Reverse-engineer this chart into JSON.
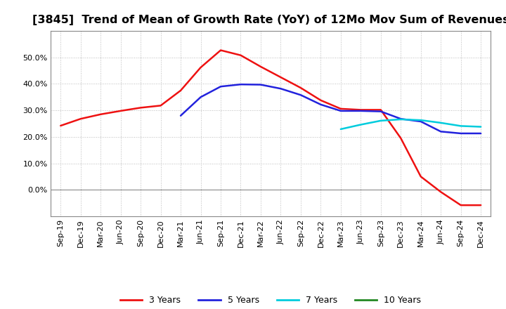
{
  "title": "[3845]  Trend of Mean of Growth Rate (YoY) of 12Mo Mov Sum of Revenues",
  "x_labels": [
    "Sep-19",
    "Dec-19",
    "Mar-20",
    "Jun-20",
    "Sep-20",
    "Dec-20",
    "Mar-21",
    "Jun-21",
    "Sep-21",
    "Dec-21",
    "Mar-22",
    "Jun-22",
    "Sep-22",
    "Dec-22",
    "Mar-23",
    "Jun-23",
    "Sep-23",
    "Dec-23",
    "Mar-24",
    "Jun-24",
    "Sep-24",
    "Dec-24"
  ],
  "ylim": [
    -0.1,
    0.6
  ],
  "yticks": [
    0.0,
    0.1,
    0.2,
    0.3,
    0.4,
    0.5
  ],
  "series": {
    "3 Years": {
      "color": "#EE1111",
      "linewidth": 1.8,
      "data_x": [
        0,
        1,
        2,
        3,
        4,
        5,
        6,
        7,
        8,
        9,
        10,
        11,
        12,
        13,
        14,
        15,
        16,
        17,
        18,
        19,
        20,
        21
      ],
      "data_y": [
        0.242,
        0.268,
        0.285,
        0.298,
        0.31,
        0.318,
        0.375,
        0.462,
        0.527,
        0.508,
        0.465,
        0.425,
        0.385,
        0.338,
        0.306,
        0.302,
        0.302,
        0.195,
        0.05,
        -0.008,
        -0.058,
        -0.058
      ]
    },
    "5 Years": {
      "color": "#2222DD",
      "linewidth": 1.8,
      "data_x": [
        6,
        7,
        8,
        9,
        10,
        11,
        12,
        13,
        14,
        15,
        16,
        17,
        18,
        19,
        20,
        21
      ],
      "data_y": [
        0.28,
        0.35,
        0.39,
        0.398,
        0.397,
        0.382,
        0.358,
        0.322,
        0.298,
        0.298,
        0.296,
        0.268,
        0.258,
        0.22,
        0.213,
        0.213
      ]
    },
    "7 Years": {
      "color": "#00CCDD",
      "linewidth": 1.8,
      "data_x": [
        14,
        15,
        16,
        17,
        18,
        19,
        20,
        21
      ],
      "data_y": [
        0.229,
        0.246,
        0.261,
        0.266,
        0.263,
        0.253,
        0.241,
        0.238
      ]
    },
    "10 Years": {
      "color": "#228822",
      "linewidth": 1.8,
      "data_x": [],
      "data_y": []
    }
  },
  "legend_labels": [
    "3 Years",
    "5 Years",
    "7 Years",
    "10 Years"
  ],
  "legend_colors": [
    "#EE1111",
    "#2222DD",
    "#00CCDD",
    "#228822"
  ],
  "background_color": "#FFFFFF",
  "plot_bg_color": "#FFFFFF",
  "grid_color": "#BBBBBB",
  "title_fontsize": 11.5,
  "tick_fontsize": 8.0,
  "legend_fontsize": 9.0
}
